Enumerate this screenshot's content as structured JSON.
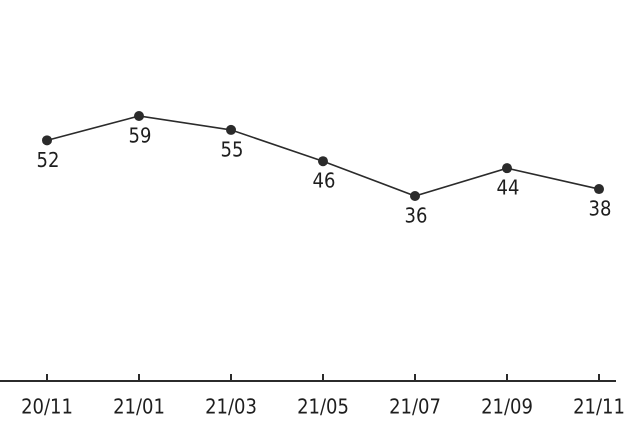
{
  "chart_data": {
    "type": "line",
    "categories": [
      "20/11",
      "21/01",
      "21/03",
      "21/05",
      "21/07",
      "21/09",
      "21/11"
    ],
    "series": [
      {
        "color": "#2b2b2b",
        "values": [
          52,
          59,
          55,
          46,
          36,
          44,
          38
        ]
      }
    ]
  }
}
